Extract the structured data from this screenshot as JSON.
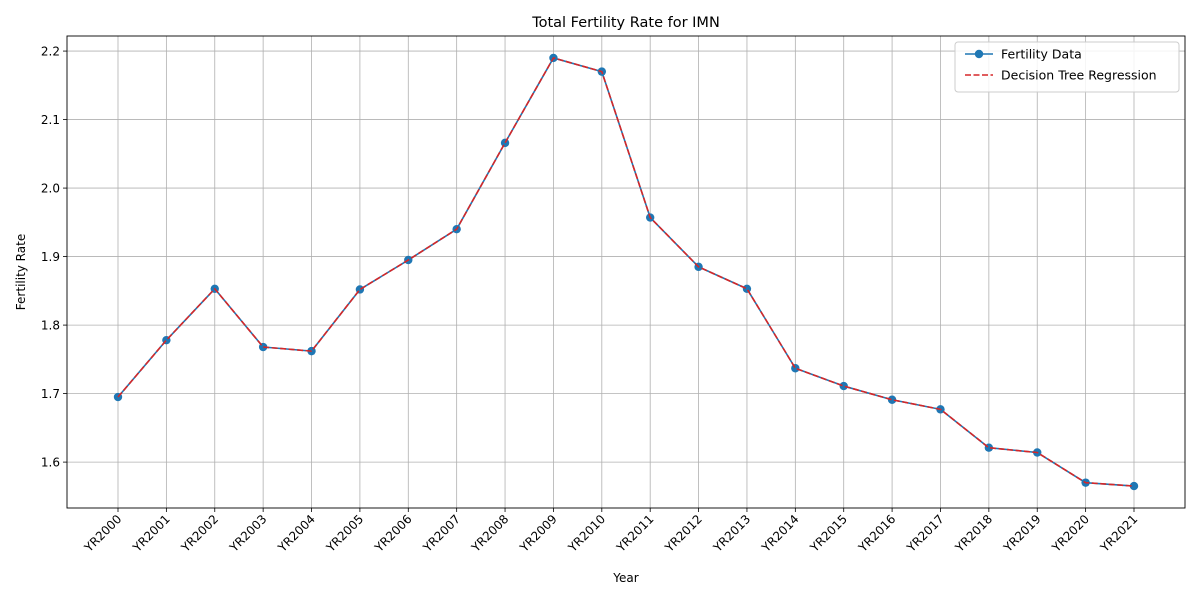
{
  "chart_data": {
    "type": "line",
    "title": "Total Fertility Rate for IMN",
    "xlabel": "Year",
    "ylabel": "Fertility Rate",
    "categories": [
      "YR2000",
      "YR2001",
      "YR2002",
      "YR2003",
      "YR2004",
      "YR2005",
      "YR2006",
      "YR2007",
      "YR2008",
      "YR2009",
      "YR2010",
      "YR2011",
      "YR2012",
      "YR2013",
      "YR2014",
      "YR2015",
      "YR2016",
      "YR2017",
      "YR2018",
      "YR2019",
      "YR2020",
      "YR2021"
    ],
    "ylim": [
      1.533,
      2.222
    ],
    "yticks": [
      1.6,
      1.7,
      1.8,
      1.9,
      2.0,
      2.1,
      2.2
    ],
    "ytick_labels": [
      "1.6",
      "1.7",
      "1.8",
      "1.9",
      "2.0",
      "2.1",
      "2.2"
    ],
    "grid": true,
    "legend_position": "top-right",
    "series": [
      {
        "name": "Fertility Data",
        "style": "solid-with-markers",
        "color": "#1f77b4",
        "values": [
          1.695,
          1.778,
          1.853,
          1.768,
          1.762,
          1.852,
          1.895,
          1.94,
          2.066,
          2.19,
          2.17,
          1.957,
          1.885,
          1.853,
          1.737,
          1.711,
          1.691,
          1.677,
          1.621,
          1.614,
          1.57,
          1.565
        ]
      },
      {
        "name": "Decision Tree Regression",
        "style": "dashed",
        "color": "#d62728",
        "values": [
          1.695,
          1.778,
          1.853,
          1.768,
          1.762,
          1.852,
          1.895,
          1.94,
          2.066,
          2.19,
          2.17,
          1.957,
          1.885,
          1.853,
          1.737,
          1.711,
          1.691,
          1.677,
          1.621,
          1.614,
          1.57,
          1.565
        ]
      }
    ]
  }
}
